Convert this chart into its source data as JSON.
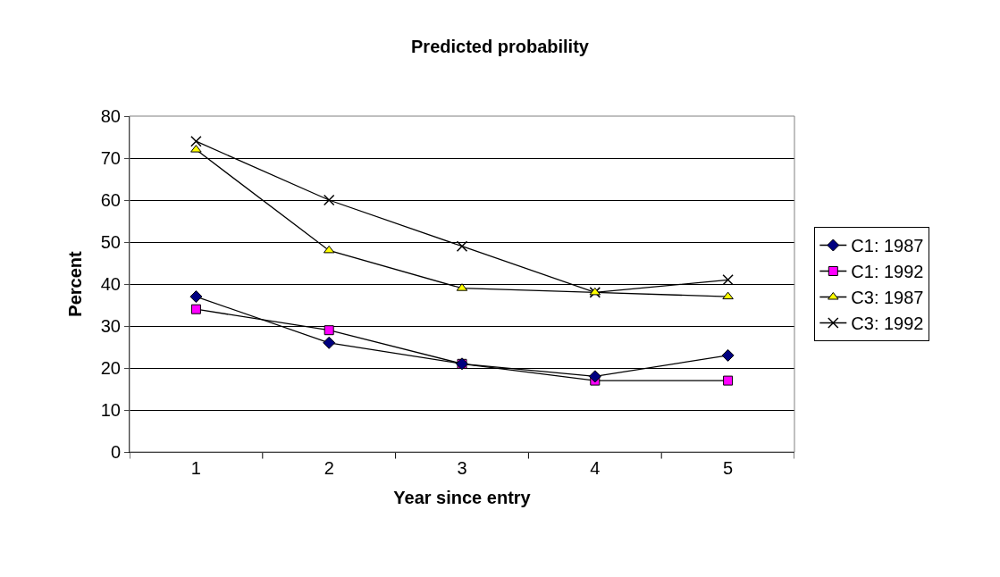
{
  "chart_data": {
    "type": "line",
    "title": "Predicted probability",
    "xlabel": "Year since entry",
    "ylabel": "Percent",
    "categories": [
      "1",
      "2",
      "3",
      "4",
      "5"
    ],
    "series": [
      {
        "name": "C1: 1987",
        "color": "#000080",
        "marker": "diamond",
        "values": [
          37,
          26,
          21,
          18,
          23
        ]
      },
      {
        "name": "C1: 1992",
        "color": "#ff00ff",
        "marker": "square",
        "values": [
          34,
          29,
          21,
          17,
          17
        ]
      },
      {
        "name": "C3: 1987",
        "color": "#ffff00",
        "marker": "triangle",
        "values": [
          72,
          48,
          39,
          38,
          37
        ]
      },
      {
        "name": "C3: 1992",
        "color": "#000000",
        "marker": "cross",
        "values": [
          74,
          60,
          49,
          38,
          41
        ]
      }
    ],
    "ylim": [
      0,
      80
    ],
    "yticks": [
      0,
      10,
      20,
      30,
      40,
      50,
      60,
      70,
      80
    ],
    "grid": "y",
    "legend": "right",
    "line_style": "solid"
  }
}
